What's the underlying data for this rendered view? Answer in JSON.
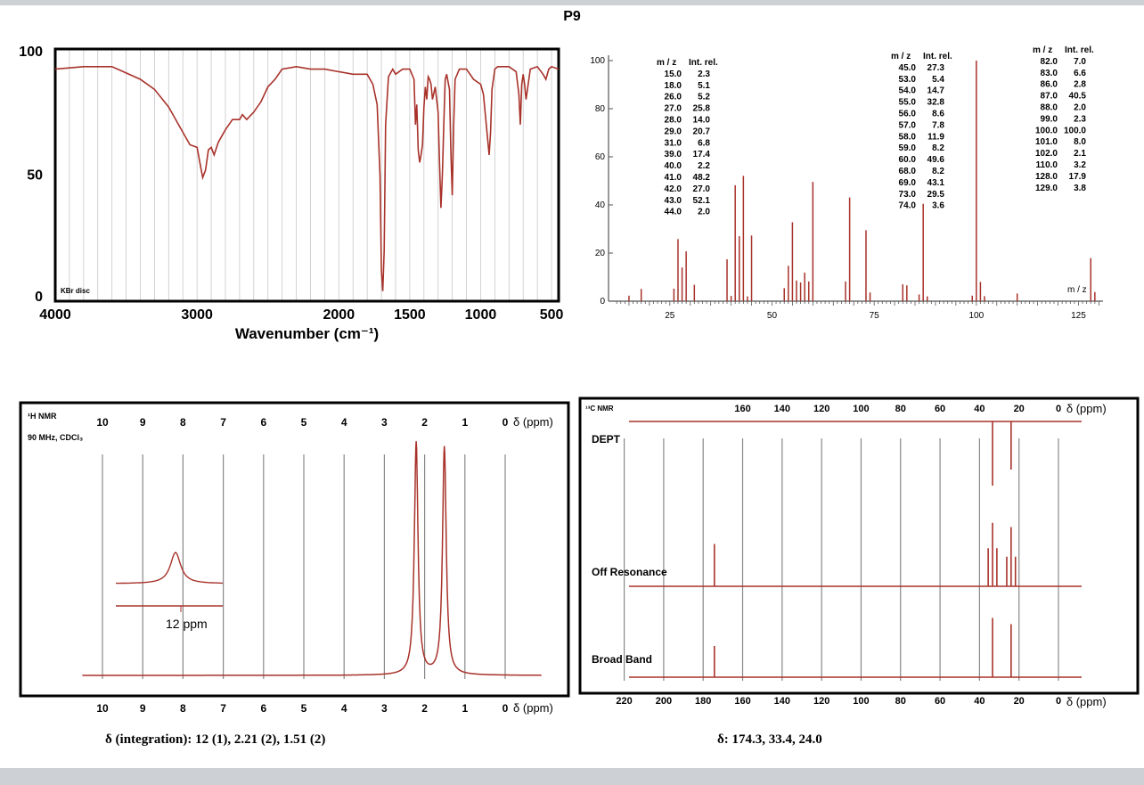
{
  "page": {
    "title": "P9"
  },
  "captions": {
    "hnmr": "δ (integration): 12 (1), 2.21 (2), 1.51 (2)",
    "cnmr": "δ: 174.3, 33.4, 24.0"
  },
  "colors": {
    "trace": "#a8322a",
    "grid": "#c8c8c8",
    "frame": "#000000"
  },
  "chart_data": [
    {
      "id": "ir",
      "type": "line",
      "xlabel": "Wavenumber (cm⁻¹)",
      "xlim": [
        4000,
        450
      ],
      "ylim": [
        0,
        100
      ],
      "x_ticks": [
        4000,
        3000,
        2000,
        1500,
        1000,
        500
      ],
      "y_ticks": [
        0,
        50,
        100
      ],
      "annotation": "KBr disc",
      "grid": true,
      "x": [
        4000,
        3800,
        3600,
        3400,
        3300,
        3200,
        3100,
        3050,
        3000,
        2980,
        2960,
        2940,
        2920,
        2900,
        2880,
        2850,
        2800,
        2750,
        2700,
        2680,
        2650,
        2600,
        2550,
        2500,
        2450,
        2400,
        2300,
        2200,
        2100,
        2000,
        1900,
        1800,
        1760,
        1730,
        1710,
        1700,
        1690,
        1680,
        1670,
        1650,
        1620,
        1600,
        1550,
        1500,
        1470,
        1460,
        1450,
        1440,
        1430,
        1420,
        1410,
        1400,
        1390,
        1380,
        1370,
        1360,
        1350,
        1340,
        1320,
        1300,
        1290,
        1280,
        1270,
        1260,
        1250,
        1240,
        1220,
        1210,
        1200,
        1190,
        1180,
        1150,
        1100,
        1050,
        1000,
        980,
        960,
        940,
        930,
        920,
        900,
        880,
        850,
        800,
        750,
        730,
        720,
        710,
        700,
        690,
        680,
        650,
        600,
        560,
        540,
        520,
        500,
        450
      ],
      "y": [
        92,
        93,
        93,
        88,
        84,
        77,
        67,
        62,
        61,
        55,
        49,
        52,
        60,
        61,
        58,
        63,
        68,
        72,
        72,
        74,
        72,
        75,
        79,
        85,
        88,
        92,
        93,
        92,
        92,
        91,
        90,
        90,
        86,
        78,
        50,
        12,
        4,
        20,
        70,
        89,
        92,
        90,
        92,
        92,
        88,
        70,
        78,
        60,
        55,
        58,
        62,
        77,
        85,
        80,
        89,
        88,
        86,
        80,
        85,
        75,
        55,
        37,
        50,
        70,
        88,
        90,
        84,
        60,
        42,
        70,
        88,
        92,
        92,
        88,
        86,
        82,
        70,
        58,
        67,
        84,
        92,
        93,
        93,
        93,
        91,
        82,
        70,
        86,
        90,
        86,
        80,
        92,
        93,
        90,
        88,
        92,
        93,
        92
      ]
    },
    {
      "id": "ms",
      "type": "bar",
      "xlabel": "m / z",
      "xlim": [
        10,
        131
      ],
      "ylim": [
        0,
        100
      ],
      "x_ticks": [
        25,
        50,
        75,
        100,
        125
      ],
      "y_ticks": [
        0,
        20,
        40,
        60,
        80,
        100
      ],
      "table_headers": [
        "m / z",
        "Int. rel."
      ],
      "table": [
        [
          [
            15.0,
            2.3
          ],
          [
            18.0,
            5.1
          ],
          [
            26.0,
            5.2
          ],
          [
            27.0,
            25.8
          ],
          [
            28.0,
            14.0
          ],
          [
            29.0,
            20.7
          ],
          [
            31.0,
            6.8
          ],
          [
            39.0,
            17.4
          ],
          [
            40.0,
            2.2
          ],
          [
            41.0,
            48.2
          ],
          [
            42.0,
            27.0
          ],
          [
            43.0,
            52.1
          ],
          [
            44.0,
            2.0
          ]
        ],
        [
          [
            45.0,
            27.3
          ],
          [
            53.0,
            5.4
          ],
          [
            54.0,
            14.7
          ],
          [
            55.0,
            32.8
          ],
          [
            56.0,
            8.6
          ],
          [
            57.0,
            7.8
          ],
          [
            58.0,
            11.9
          ],
          [
            59.0,
            8.2
          ],
          [
            60.0,
            49.6
          ],
          [
            68.0,
            8.2
          ],
          [
            69.0,
            43.1
          ],
          [
            73.0,
            29.5
          ],
          [
            74.0,
            3.6
          ]
        ],
        [
          [
            82.0,
            7.0
          ],
          [
            83.0,
            6.6
          ],
          [
            86.0,
            2.8
          ],
          [
            87.0,
            40.5
          ],
          [
            88.0,
            2.0
          ],
          [
            99.0,
            2.3
          ],
          [
            100.0,
            100.0
          ],
          [
            101.0,
            8.0
          ],
          [
            102.0,
            2.1
          ],
          [
            110.0,
            3.2
          ],
          [
            128.0,
            17.9
          ],
          [
            129.0,
            3.8
          ]
        ]
      ],
      "peaks_mz": [
        15,
        18,
        26,
        27,
        28,
        29,
        31,
        39,
        40,
        41,
        42,
        43,
        44,
        45,
        53,
        54,
        55,
        56,
        57,
        58,
        59,
        60,
        68,
        69,
        73,
        74,
        82,
        83,
        86,
        87,
        88,
        99,
        100,
        101,
        102,
        110,
        128,
        129
      ],
      "peaks_int": [
        2.3,
        5.1,
        5.2,
        25.8,
        14.0,
        20.7,
        6.8,
        17.4,
        2.2,
        48.2,
        27.0,
        52.1,
        2.0,
        27.3,
        5.4,
        14.7,
        32.8,
        8.6,
        7.8,
        11.9,
        8.2,
        49.6,
        8.2,
        43.1,
        29.5,
        3.6,
        7.0,
        6.6,
        2.8,
        40.5,
        2.0,
        2.3,
        100.0,
        8.0,
        2.1,
        3.2,
        17.9,
        3.8
      ]
    },
    {
      "id": "hnmr",
      "type": "line",
      "title": "¹H NMR",
      "subtitle": "90 MHz, CDCl₃",
      "xlabel": "δ (ppm)",
      "xlim": [
        10.8,
        -1.4
      ],
      "ticks": [
        10,
        9,
        8,
        7,
        6,
        5,
        4,
        3,
        2,
        1,
        0
      ],
      "grid_lines": [
        10,
        9,
        8,
        7,
        6,
        5,
        4,
        3,
        2,
        1,
        0
      ],
      "peaks": [
        {
          "shift": 2.21,
          "integration": 2,
          "height": 0.95
        },
        {
          "shift": 1.51,
          "integration": 2,
          "height": 0.93
        }
      ],
      "inset": {
        "shift": 12,
        "integration": 1,
        "label": "12 ppm"
      }
    },
    {
      "id": "cnmr",
      "type": "bar",
      "title": "¹³C NMR",
      "xlabel": "δ (ppm)",
      "xlim": [
        230,
        -5
      ],
      "ticks": [
        220,
        200,
        180,
        160,
        140,
        120,
        100,
        80,
        60,
        40,
        20,
        0
      ],
      "top_ticks": [
        160,
        140,
        120,
        100,
        80,
        60,
        40,
        20,
        0
      ],
      "traces": [
        {
          "label": "DEPT",
          "peaks": [
            {
              "shift": 33.4,
              "dir": -1,
              "h": 0.6
            },
            {
              "shift": 24.0,
              "dir": -1,
              "h": 0.45
            }
          ]
        },
        {
          "label": "Off Resonance",
          "peaks": [
            {
              "shift": 174.3,
              "h": 0.5
            },
            {
              "shift": 35.6,
              "h": 0.45
            },
            {
              "shift": 33.4,
              "h": 0.75
            },
            {
              "shift": 31.2,
              "h": 0.45
            },
            {
              "shift": 26.2,
              "h": 0.35
            },
            {
              "shift": 24.0,
              "h": 0.7
            },
            {
              "shift": 21.8,
              "h": 0.35
            }
          ]
        },
        {
          "label": "Broad Band",
          "peaks": [
            {
              "shift": 174.3,
              "h": 0.5
            },
            {
              "shift": 33.4,
              "h": 0.95
            },
            {
              "shift": 24.0,
              "h": 0.85
            }
          ]
        }
      ]
    }
  ]
}
